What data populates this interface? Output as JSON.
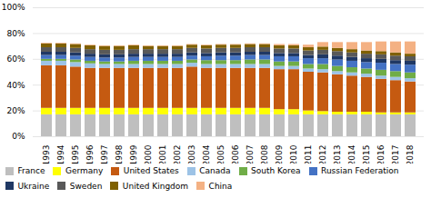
{
  "chart_data": {
    "type": "bar",
    "stacked": true,
    "categories": [
      "1993",
      "1994",
      "1995",
      "1996",
      "1997",
      "1998",
      "1999",
      "2000",
      "2001",
      "2002",
      "2003",
      "2004",
      "2005",
      "2006",
      "2007",
      "2008",
      "2009",
      "2010",
      "2011",
      "2012",
      "2013",
      "2014",
      "2015",
      "2016",
      "2017",
      "2018"
    ],
    "series": [
      {
        "name": "France",
        "color": "#bfbfbf",
        "values": [
          17,
          17,
          17,
          17,
          17,
          17,
          17,
          17,
          17,
          17,
          17,
          17,
          17,
          17,
          17,
          17,
          17,
          17,
          17,
          17,
          17,
          17,
          17,
          17,
          17,
          17
        ]
      },
      {
        "name": "Germany",
        "color": "#ffff00",
        "values": [
          5,
          5,
          5,
          5,
          5,
          5,
          5,
          5,
          5,
          5,
          5,
          5,
          5,
          5,
          5,
          5,
          4,
          4,
          3,
          2.5,
          2,
          2,
          2,
          1.5,
          1.5,
          1.5
        ]
      },
      {
        "name": "United States",
        "color": "#c55a11",
        "values": [
          33,
          33,
          32,
          31,
          31,
          31,
          31,
          31,
          31,
          31,
          32,
          31,
          31,
          31,
          31,
          31,
          31,
          31,
          30,
          30,
          29,
          28,
          27,
          26,
          25,
          24
        ]
      },
      {
        "name": "Canada",
        "color": "#9dc3e6",
        "values": [
          3.5,
          3.5,
          3.5,
          3.5,
          3,
          3,
          3,
          3,
          3,
          3,
          3,
          3,
          3,
          3,
          3,
          3,
          2.5,
          2.5,
          2.5,
          2.5,
          2.5,
          2.5,
          2.5,
          2.5,
          2.5,
          2.5
        ]
      },
      {
        "name": "South Korea",
        "color": "#70ad47",
        "values": [
          1.5,
          1.5,
          2,
          2,
          2,
          2,
          2.5,
          2.5,
          2.5,
          2.5,
          2.5,
          3,
          3,
          3,
          3.5,
          3.5,
          3.5,
          3.5,
          3.5,
          4,
          4,
          4,
          4,
          4.5,
          4.5,
          4.5
        ]
      },
      {
        "name": "Russian Federation",
        "color": "#4472c4",
        "values": [
          3,
          3,
          3,
          3,
          3,
          3,
          3,
          3,
          3,
          3,
          3,
          3,
          3.5,
          3.5,
          3.5,
          3.5,
          4,
          4,
          4.5,
          4.5,
          5,
          5,
          5,
          5.5,
          5.5,
          6
        ]
      },
      {
        "name": "Ukraine",
        "color": "#203864",
        "values": [
          2.5,
          2.5,
          2.5,
          2.5,
          2.5,
          2.5,
          2.5,
          2.5,
          2.5,
          2.5,
          2.5,
          2.5,
          2.5,
          2.5,
          2.5,
          2.5,
          2.5,
          2.5,
          2.5,
          3,
          3,
          3,
          3,
          3,
          3,
          3
        ]
      },
      {
        "name": "Sweden",
        "color": "#595959",
        "values": [
          3.5,
          3.5,
          3.5,
          3.5,
          3.5,
          3.5,
          3.5,
          3.5,
          3.5,
          3.5,
          3.5,
          3.5,
          3.5,
          3.5,
          3.5,
          3.5,
          3.5,
          3.5,
          3.5,
          3.5,
          3.5,
          3.5,
          3.5,
          3.5,
          3.5,
          3.5
        ]
      },
      {
        "name": "United Kingdom",
        "color": "#7f6000",
        "values": [
          3,
          3,
          3,
          3,
          3,
          3,
          3,
          2.5,
          2.5,
          2.5,
          2.5,
          2.5,
          2.5,
          2.5,
          2.5,
          2.5,
          2.5,
          2.5,
          2.5,
          2.5,
          2.5,
          2.5,
          2.5,
          2.5,
          2.5,
          2
        ]
      },
      {
        "name": "China",
        "color": "#f4b183",
        "values": [
          0.5,
          0.5,
          0.5,
          0.5,
          0.5,
          0.5,
          0.5,
          0.5,
          0.5,
          0.5,
          0.5,
          0.5,
          0.5,
          0.5,
          0.5,
          0.5,
          1,
          1,
          2,
          3.5,
          4.5,
          5.5,
          6.5,
          7.5,
          8.5,
          9.5
        ]
      }
    ],
    "ylim": [
      0,
      100
    ],
    "yticks": [
      {
        "value": 0,
        "label": "0%"
      },
      {
        "value": 20,
        "label": "20%"
      },
      {
        "value": 40,
        "label": "40%"
      },
      {
        "value": 60,
        "label": "60%"
      },
      {
        "value": 80,
        "label": "80%"
      },
      {
        "value": 100,
        "label": "100%"
      }
    ],
    "grid": true,
    "legend": "bottom"
  }
}
